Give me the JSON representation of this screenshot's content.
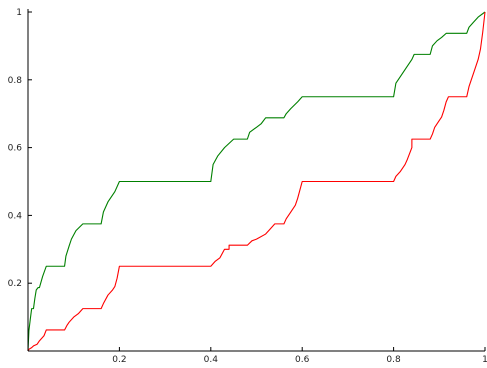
{
  "chart_data": {
    "type": "line",
    "title": "",
    "xlabel": "",
    "ylabel": "",
    "xlim": [
      0,
      1
    ],
    "ylim": [
      0,
      1
    ],
    "grid": false,
    "x_ticks": [
      {
        "value": 0.2,
        "label": "0.2"
      },
      {
        "value": 0.4,
        "label": "0.4"
      },
      {
        "value": 0.6,
        "label": "0.6"
      },
      {
        "value": 0.8,
        "label": "0.8"
      },
      {
        "value": 1.0,
        "label": "1"
      }
    ],
    "y_ticks": [
      {
        "value": 0.2,
        "label": "0.2"
      },
      {
        "value": 0.4,
        "label": "0.4"
      },
      {
        "value": 0.6,
        "label": "0.6"
      },
      {
        "value": 0.8,
        "label": "0.8"
      },
      {
        "value": 1.0,
        "label": "1"
      }
    ],
    "series": [
      {
        "color": "#008000",
        "points": [
          [
            0,
            0
          ],
          [
            0.002,
            0.06
          ],
          [
            0.005,
            0.094
          ],
          [
            0.008,
            0.125
          ],
          [
            0.012,
            0.125
          ],
          [
            0.015,
            0.155
          ],
          [
            0.018,
            0.18
          ],
          [
            0.022,
            0.187
          ],
          [
            0.025,
            0.187
          ],
          [
            0.032,
            0.22
          ],
          [
            0.04,
            0.25
          ],
          [
            0.08,
            0.25
          ],
          [
            0.083,
            0.28
          ],
          [
            0.09,
            0.31
          ],
          [
            0.095,
            0.33
          ],
          [
            0.105,
            0.355
          ],
          [
            0.12,
            0.375
          ],
          [
            0.16,
            0.375
          ],
          [
            0.165,
            0.41
          ],
          [
            0.175,
            0.44
          ],
          [
            0.18,
            0.45
          ],
          [
            0.19,
            0.47
          ],
          [
            0.2,
            0.5
          ],
          [
            0.4,
            0.5
          ],
          [
            0.405,
            0.55
          ],
          [
            0.415,
            0.575
          ],
          [
            0.43,
            0.6
          ],
          [
            0.45,
            0.625
          ],
          [
            0.48,
            0.625
          ],
          [
            0.485,
            0.645
          ],
          [
            0.5,
            0.66
          ],
          [
            0.51,
            0.67
          ],
          [
            0.52,
            0.688
          ],
          [
            0.56,
            0.688
          ],
          [
            0.565,
            0.7
          ],
          [
            0.575,
            0.715
          ],
          [
            0.59,
            0.735
          ],
          [
            0.6,
            0.75
          ],
          [
            0.8,
            0.75
          ],
          [
            0.805,
            0.79
          ],
          [
            0.815,
            0.81
          ],
          [
            0.83,
            0.84
          ],
          [
            0.84,
            0.86
          ],
          [
            0.845,
            0.875
          ],
          [
            0.88,
            0.875
          ],
          [
            0.885,
            0.9
          ],
          [
            0.895,
            0.915
          ],
          [
            0.905,
            0.925
          ],
          [
            0.915,
            0.937
          ],
          [
            0.96,
            0.937
          ],
          [
            0.965,
            0.955
          ],
          [
            0.975,
            0.97
          ],
          [
            0.985,
            0.985
          ],
          [
            1.0,
            1.0
          ]
        ]
      },
      {
        "color": "#ff0000",
        "points": [
          [
            0,
            0
          ],
          [
            0.002,
            0.005
          ],
          [
            0.008,
            0.01
          ],
          [
            0.012,
            0.015
          ],
          [
            0.02,
            0.02
          ],
          [
            0.025,
            0.03
          ],
          [
            0.035,
            0.045
          ],
          [
            0.04,
            0.062
          ],
          [
            0.08,
            0.062
          ],
          [
            0.085,
            0.075
          ],
          [
            0.09,
            0.085
          ],
          [
            0.1,
            0.1
          ],
          [
            0.11,
            0.11
          ],
          [
            0.12,
            0.125
          ],
          [
            0.16,
            0.125
          ],
          [
            0.165,
            0.14
          ],
          [
            0.175,
            0.165
          ],
          [
            0.185,
            0.18
          ],
          [
            0.19,
            0.19
          ],
          [
            0.195,
            0.215
          ],
          [
            0.2,
            0.25
          ],
          [
            0.4,
            0.25
          ],
          [
            0.41,
            0.265
          ],
          [
            0.42,
            0.275
          ],
          [
            0.43,
            0.3
          ],
          [
            0.44,
            0.3
          ],
          [
            0.44,
            0.312
          ],
          [
            0.48,
            0.312
          ],
          [
            0.49,
            0.325
          ],
          [
            0.5,
            0.33
          ],
          [
            0.52,
            0.345
          ],
          [
            0.53,
            0.36
          ],
          [
            0.54,
            0.375
          ],
          [
            0.56,
            0.375
          ],
          [
            0.565,
            0.39
          ],
          [
            0.575,
            0.41
          ],
          [
            0.585,
            0.43
          ],
          [
            0.59,
            0.45
          ],
          [
            0.6,
            0.5
          ],
          [
            0.8,
            0.5
          ],
          [
            0.805,
            0.515
          ],
          [
            0.815,
            0.53
          ],
          [
            0.825,
            0.55
          ],
          [
            0.83,
            0.565
          ],
          [
            0.84,
            0.6
          ],
          [
            0.84,
            0.625
          ],
          [
            0.88,
            0.625
          ],
          [
            0.885,
            0.64
          ],
          [
            0.89,
            0.66
          ],
          [
            0.9,
            0.68
          ],
          [
            0.905,
            0.69
          ],
          [
            0.91,
            0.71
          ],
          [
            0.915,
            0.735
          ],
          [
            0.92,
            0.75
          ],
          [
            0.96,
            0.75
          ],
          [
            0.965,
            0.78
          ],
          [
            0.975,
            0.82
          ],
          [
            0.985,
            0.86
          ],
          [
            0.99,
            0.89
          ],
          [
            0.995,
            0.94
          ],
          [
            1.0,
            1.0
          ]
        ]
      }
    ]
  }
}
